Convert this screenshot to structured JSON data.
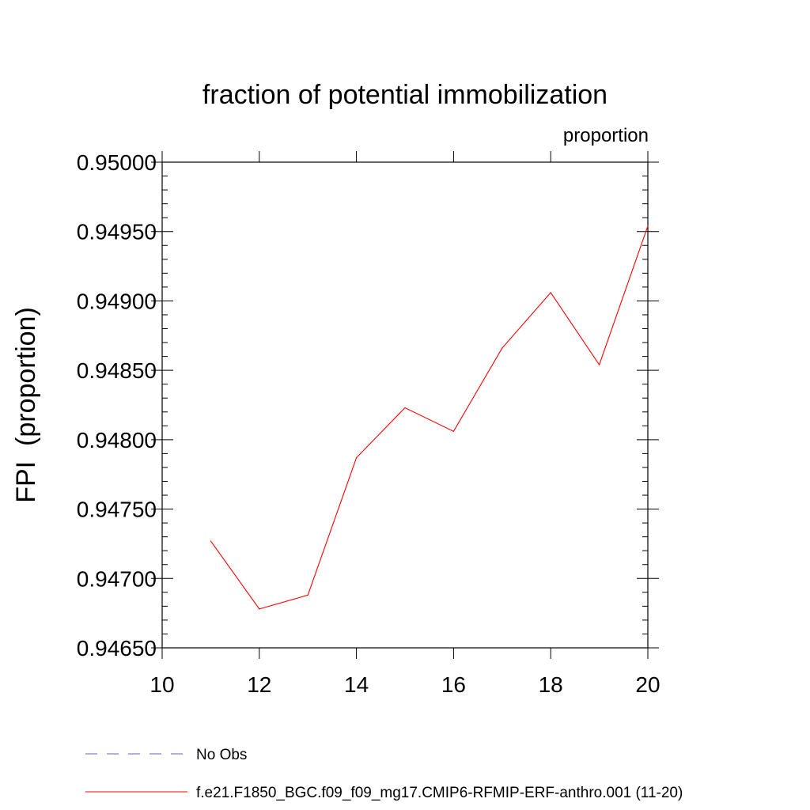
{
  "chart_data": {
    "type": "line",
    "title": "fraction of potential immobilization",
    "units_label": "proportion",
    "xlabel": "",
    "ylabel": "FPI  (proportion)",
    "xlim": [
      10,
      20
    ],
    "ylim": [
      0.9465,
      0.95
    ],
    "x_ticks": [
      10,
      12,
      14,
      16,
      18,
      20
    ],
    "x_tick_labels": [
      "10",
      "12",
      "14",
      "16",
      "18",
      "20"
    ],
    "y_ticks": [
      0.9465,
      0.947,
      0.9475,
      0.948,
      0.9485,
      0.949,
      0.9495,
      0.95
    ],
    "y_tick_labels": [
      "0.94650",
      "0.94700",
      "0.94750",
      "0.94800",
      "0.94850",
      "0.94900",
      "0.94950",
      "0.95000"
    ],
    "series": [
      {
        "name": "f.e21.F1850_BGC.f09_f09_mg17.CMIP6-RFMIP-ERF-anthro.001 (11-20)",
        "color": "#ff0000",
        "style": "solid",
        "x": [
          11,
          12,
          13,
          14,
          15,
          16,
          17,
          18,
          19,
          20
        ],
        "values": [
          0.94727,
          0.94678,
          0.94688,
          0.94787,
          0.94823,
          0.94806,
          0.94866,
          0.94906,
          0.94854,
          0.94954
        ]
      }
    ],
    "legend": [
      {
        "label": "No Obs",
        "color": "#6a5acd",
        "style": "dashed"
      },
      {
        "label": "f.e21.F1850_BGC.f09_f09_mg17.CMIP6-RFMIP-ERF-anthro.001 (11-20)",
        "color": "#ff0000",
        "style": "solid"
      }
    ],
    "legend_position": "bottom",
    "grid": false
  }
}
